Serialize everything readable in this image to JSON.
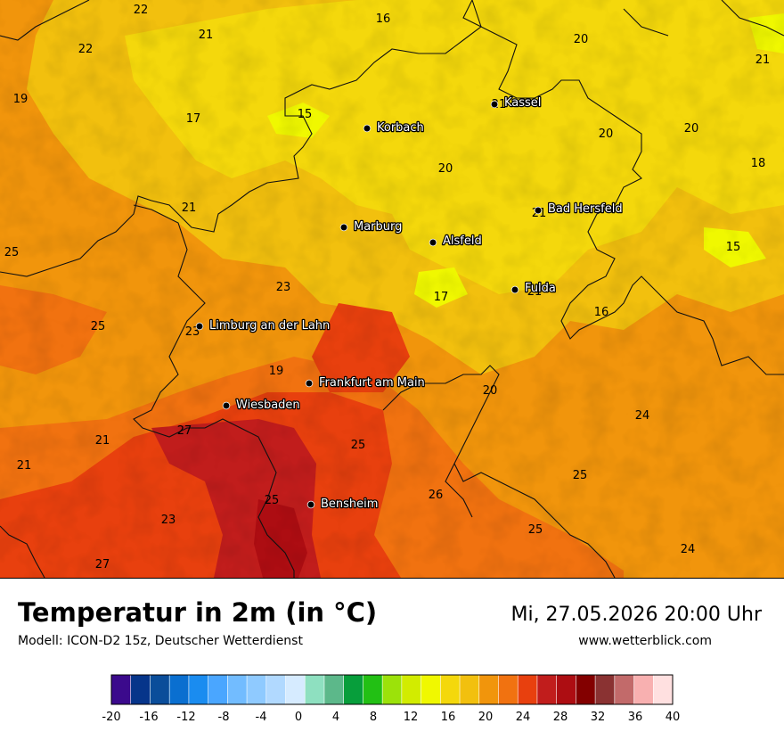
{
  "title": "Temperatur in 2m (in °C)",
  "subtitle": "Modell: ICON-D2 15z, Deutscher Wetterdienst",
  "datetime": "Mi, 27.05.2026 20:00 Uhr",
  "website": "www.wetterblick.com",
  "legend": {
    "ticks": [
      "-20",
      "-16",
      "-12",
      "-8",
      "-4",
      "0",
      "4",
      "8",
      "12",
      "16",
      "20",
      "24",
      "28",
      "32",
      "36",
      "40"
    ],
    "colors": [
      "#3b0a8c",
      "#06358a",
      "#0a4d9a",
      "#0a6fd0",
      "#1a8cf0",
      "#4aa6ff",
      "#72bcff",
      "#8fcaff",
      "#b1d9ff",
      "#d6ebff",
      "#8ee0c0",
      "#5cb88a",
      "#079e3b",
      "#22c014",
      "#9ce20a",
      "#d2ec00",
      "#f0f800",
      "#f4d80c",
      "#f2c00e",
      "#f1950c",
      "#f17210",
      "#e8400e",
      "#c11d1c",
      "#ad0d12",
      "#830000",
      "#8a3232",
      "#c26a6a",
      "#f8b0b0",
      "#ffe0e0"
    ]
  },
  "cities": [
    {
      "name": "Kassel"
    },
    {
      "name": "Korbach"
    },
    {
      "name": "Bad Hersfeld"
    },
    {
      "name": "Marburg"
    },
    {
      "name": "Alsfeld"
    },
    {
      "name": "Fulda"
    },
    {
      "name": "Limburg an der Lahn"
    },
    {
      "name": "Frankfurt am Main"
    },
    {
      "name": "Wiesbaden"
    },
    {
      "name": "Bensheim"
    }
  ],
  "temperature_labels": [
    "22",
    "16",
    "21",
    "20",
    "22",
    "21",
    "19",
    "17",
    "15",
    "21",
    "20",
    "20",
    "18",
    "20",
    "21",
    "21",
    "25",
    "15",
    "23",
    "17",
    "21",
    "25",
    "23",
    "16",
    "19",
    "20",
    "24",
    "21",
    "27",
    "25",
    "21",
    "25",
    "26",
    "23",
    "25",
    "25",
    "27",
    "24"
  ]
}
